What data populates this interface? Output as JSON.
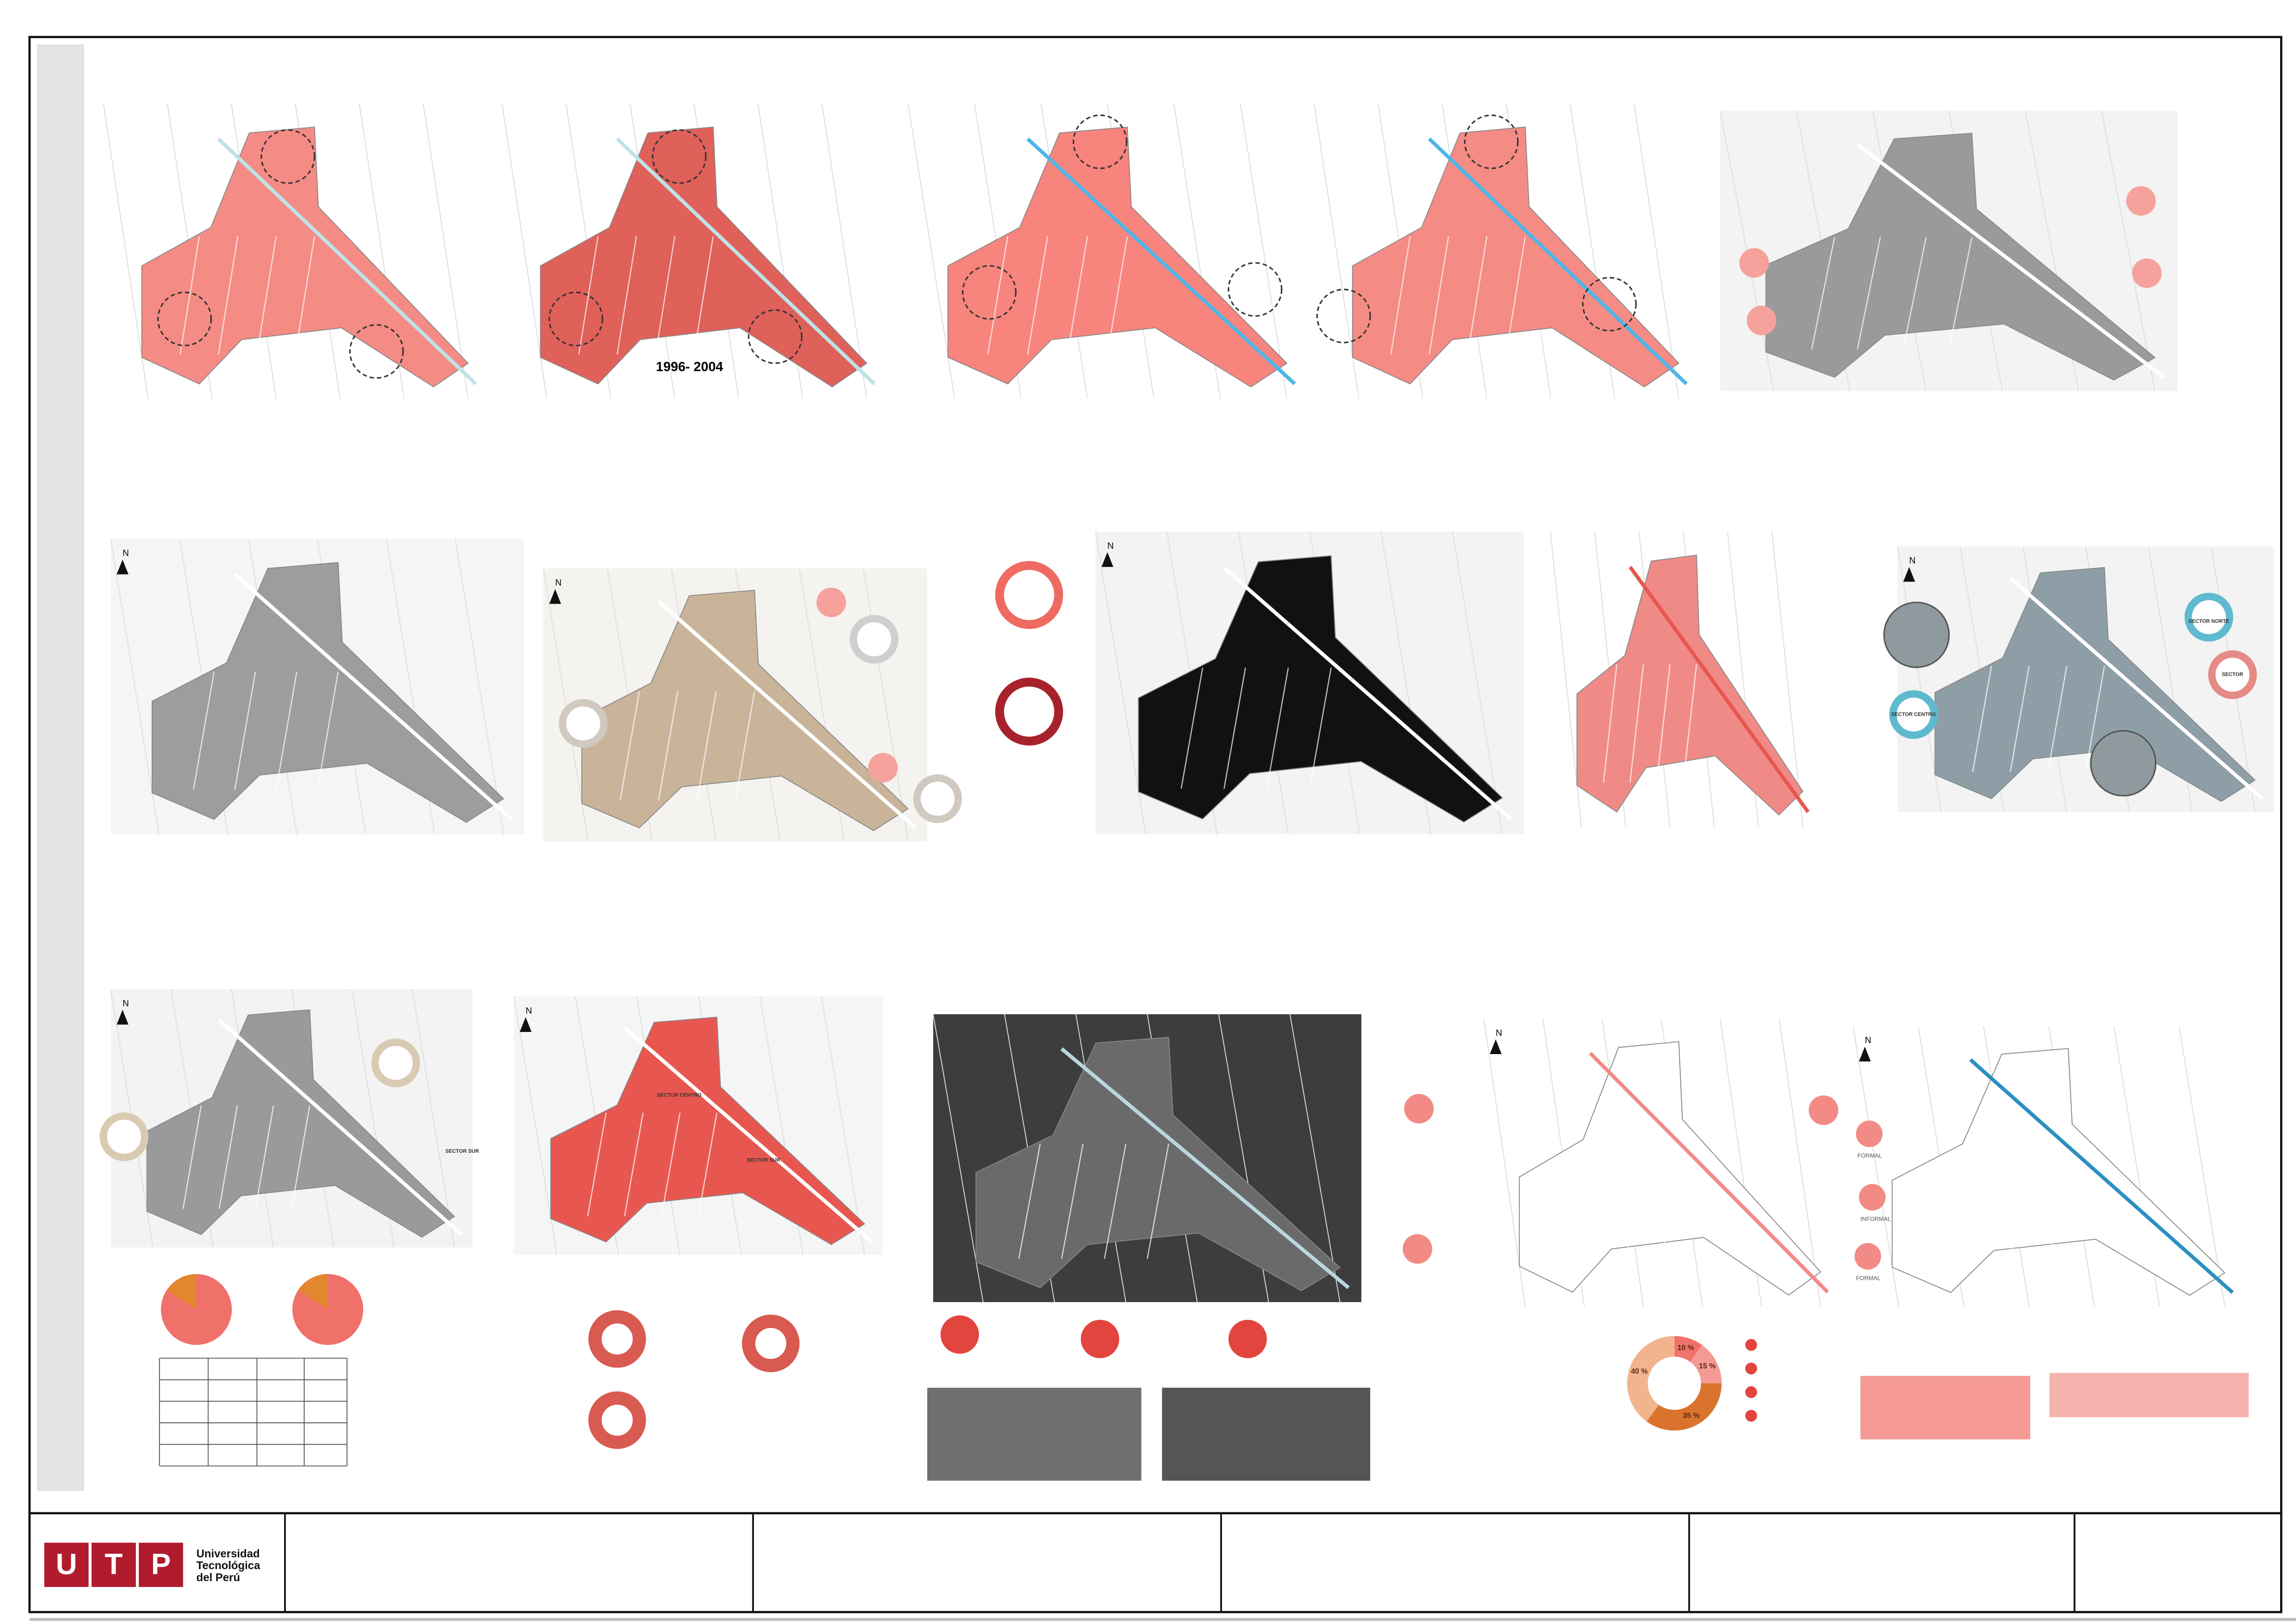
{
  "sheet": {
    "period_label": "1996- 2004",
    "north": "N",
    "sectors": [
      "SECTOR NORTE",
      "SECTOR",
      "SECTOR CENTRO",
      "SECTOR SUR",
      "SECTOR CENTRO",
      "SECTOR SUR"
    ],
    "formality": [
      "FORMAL",
      "INFORMAL",
      "FORMAL"
    ],
    "donut": {
      "values": [
        10,
        15,
        35,
        40
      ],
      "value_labels": [
        "10 %",
        "15 %",
        "35 %",
        "40 %"
      ]
    }
  },
  "title_block": {
    "logo_letters": [
      "U",
      "T",
      "P"
    ],
    "institution": [
      "Universidad",
      "Tecnológica",
      "del Perú"
    ]
  }
}
